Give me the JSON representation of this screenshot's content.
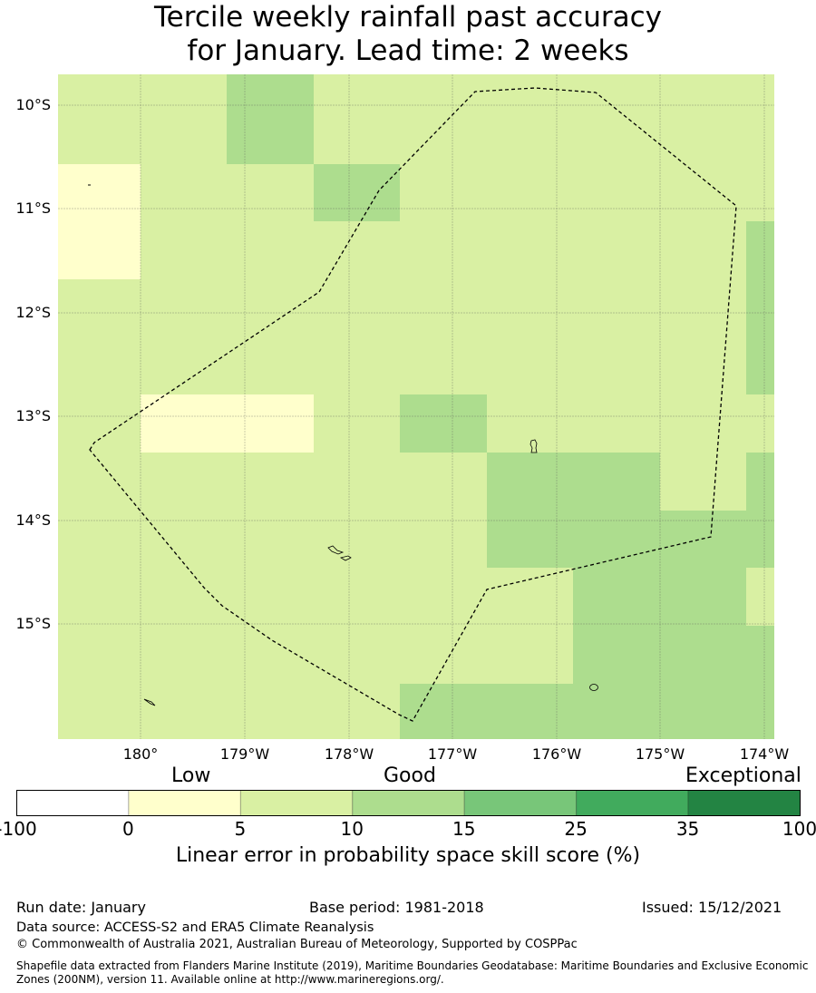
{
  "title_line1": "Tercile weekly rainfall past accuracy",
  "title_line2": "for January. Lead time: 2 weeks",
  "map": {
    "lat_labels": [
      "10°S",
      "11°S",
      "12°S",
      "13°S",
      "14°S",
      "15°S"
    ],
    "lon_labels": [
      "180°",
      "179°W",
      "178°W",
      "177°W",
      "176°W",
      "175°W",
      "174°W"
    ],
    "grid_bins_note_values": "bin index into colorbar bins",
    "grid": [
      [
        2,
        2,
        3,
        2,
        2,
        2,
        2,
        2,
        2
      ],
      [
        2,
        2,
        3,
        2,
        2,
        2,
        2,
        2,
        2
      ],
      [
        1,
        2,
        2,
        3,
        2,
        2,
        2,
        2,
        2
      ],
      [
        1,
        2,
        2,
        2,
        2,
        2,
        2,
        2,
        3
      ],
      [
        2,
        2,
        2,
        2,
        2,
        2,
        2,
        2,
        3
      ],
      [
        2,
        2,
        2,
        2,
        2,
        2,
        2,
        2,
        3
      ],
      [
        2,
        1,
        1,
        2,
        3,
        2,
        2,
        2,
        2
      ],
      [
        2,
        2,
        2,
        2,
        2,
        3,
        3,
        2,
        3
      ],
      [
        2,
        2,
        2,
        2,
        2,
        3,
        3,
        3,
        3
      ],
      [
        2,
        2,
        2,
        2,
        2,
        2,
        3,
        3,
        2
      ],
      [
        2,
        2,
        2,
        2,
        2,
        2,
        3,
        3,
        3
      ],
      [
        2,
        2,
        2,
        2,
        3,
        3,
        3,
        3,
        3
      ]
    ]
  },
  "colorbar": {
    "category_labels": [
      "Low",
      "Good",
      "Exceptional"
    ],
    "ticks": [
      "-100",
      "0",
      "5",
      "10",
      "15",
      "25",
      "35",
      "100"
    ],
    "colors": [
      "#ffffff",
      "#ffffcc",
      "#d9f0a3",
      "#addd8e",
      "#78c679",
      "#41ab5d",
      "#238443"
    ],
    "label": "Linear error in probability space skill score (%)"
  },
  "footer": {
    "run_date": "Run date: January",
    "base_period": "Base period: 1981-2018",
    "issued": "Issued: 15/12/2021",
    "data_source": "Data source: ACCESS-S2 and ERA5 Climate Reanalysis",
    "copyright": "© Commonwealth of Australia 2021, Australian Bureau of Meteorology, Supported by COSPPac",
    "shapefile_line1": "Shapefile data extracted from Flanders Marine Institute (2019), Maritime Boundaries Geodatabase: Maritime Boundaries and Exclusive Economic",
    "shapefile_line2": "Zones (200NM), version 11. Available online at http://www.marineregions.org/."
  }
}
